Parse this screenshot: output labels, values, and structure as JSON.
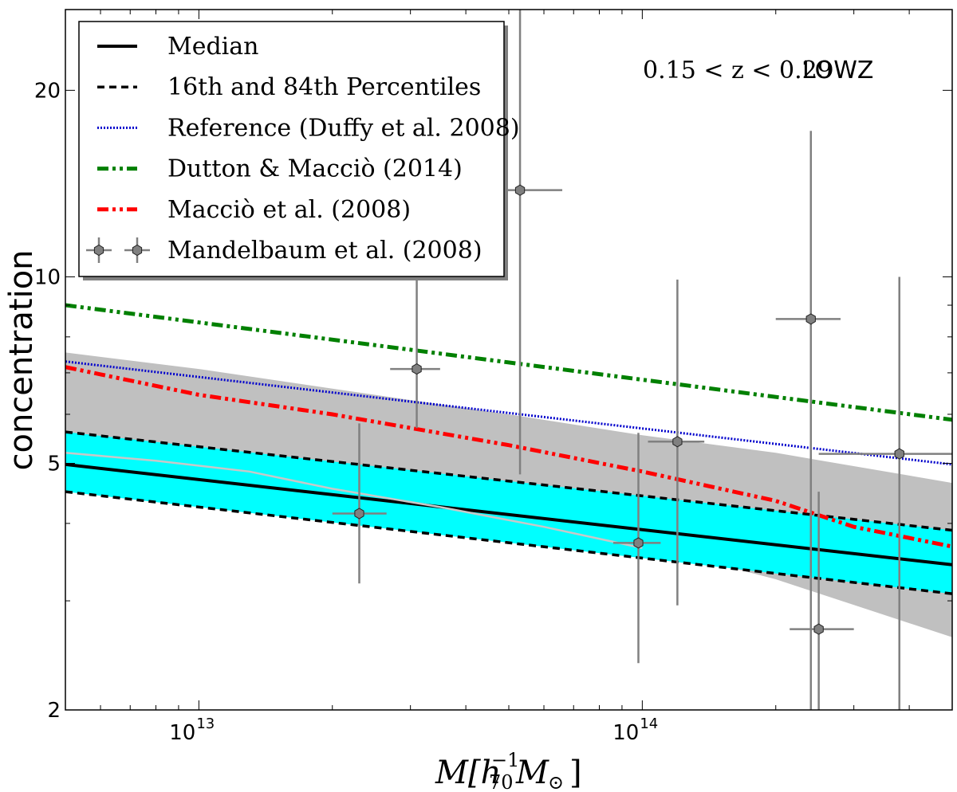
{
  "chart_data": {
    "type": "line",
    "xscale": "log",
    "yscale": "log",
    "xlim": [
      5000000000000.0,
      500000000000000.0
    ],
    "ylim": [
      2,
      27
    ],
    "xlabel": "M[h70^-1 M⊙]",
    "ylabel": "concentration",
    "grid": false,
    "legend_position": "top-left",
    "x_ticks": [
      {
        "value": 10000000000000.0,
        "base": "10",
        "exp": "13"
      },
      {
        "value": 100000000000000.0,
        "base": "10",
        "exp": "14"
      }
    ],
    "y_ticks": [
      {
        "value": 2,
        "label": "2"
      },
      {
        "value": 5,
        "label": "5"
      },
      {
        "value": 10,
        "label": "10"
      },
      {
        "value": 20,
        "label": "20"
      }
    ],
    "annotation": {
      "math": "0.15 < z < 0.29",
      "text": "LOWZ"
    },
    "series": [
      {
        "name": "Median",
        "style": "solid",
        "color": "#000000",
        "x": [
          5000000000000.0,
          500000000000000.0
        ],
        "y": [
          4.98,
          3.43
        ]
      },
      {
        "name": "16th and 84th Percentiles",
        "style": "dashed",
        "color": "#000000",
        "x": [
          5000000000000.0,
          500000000000000.0
        ],
        "y": [
          5.62,
          3.9
        ]
      },
      {
        "name": "16th Percentile",
        "style": "dashed",
        "color": "#000000",
        "legend": false,
        "x": [
          5000000000000.0,
          500000000000000.0
        ],
        "y": [
          4.5,
          3.08
        ]
      },
      {
        "name": "Reference (Duffy et al. 2008)",
        "style": "dotted",
        "color": "#0000cc",
        "x": [
          5000000000000.0,
          500000000000000.0
        ],
        "y": [
          7.3,
          4.98
        ]
      },
      {
        "name": "Dutton & Macciò (2014)",
        "style": "dashdotdot",
        "color": "#008000",
        "x": [
          5000000000000.0,
          500000000000000.0
        ],
        "y": [
          9.0,
          5.88
        ]
      },
      {
        "name": "Macciò et al. (2008)",
        "style": "dashdotdot",
        "color": "#ff0000",
        "x": [
          5000000000000.0,
          10000000000000.0,
          20000000000000.0,
          50000000000000.0,
          100000000000000.0,
          200000000000000.0,
          300000000000000.0,
          500000000000000.0
        ],
        "y": [
          7.15,
          6.45,
          6.0,
          5.35,
          4.85,
          4.35,
          3.95,
          3.67
        ]
      },
      {
        "name": "Light grey median",
        "style": "solid",
        "color": "#c8c8c8",
        "legend": false,
        "x": [
          5000000000000.0,
          8000000000000.0,
          13000000000000.0,
          20000000000000.0,
          35000000000000.0,
          60000000000000.0,
          100000000000000.0
        ],
        "y": [
          5.2,
          5.05,
          4.85,
          4.55,
          4.25,
          3.95,
          3.65
        ]
      }
    ],
    "bands": [
      {
        "name": "grey-scatter",
        "color": "#c0c0c0",
        "x": [
          5000000000000.0,
          10000000000000.0,
          20000000000000.0,
          50000000000000.0,
          100000000000000.0,
          200000000000000.0,
          500000000000000.0
        ],
        "upper": [
          7.55,
          7.1,
          6.6,
          6.0,
          5.55,
          5.2,
          4.65
        ],
        "lower": [
          5.2,
          5.0,
          4.6,
          4.1,
          3.7,
          3.25,
          2.62
        ]
      },
      {
        "name": "cyan-percentile-band",
        "color": "#00ffff",
        "x": [
          5000000000000.0,
          500000000000000.0
        ],
        "upper": [
          5.62,
          3.9
        ],
        "lower": [
          4.5,
          3.08
        ]
      }
    ],
    "points": {
      "name": "Mandelbaum et al. (2008)",
      "color": "#808080",
      "data": [
        {
          "x": 23000000000000.0,
          "y": 4.15,
          "xlo": 20000000000000.0,
          "xhi": 26500000000000.0,
          "ylo": 3.2,
          "yhi": 5.8
        },
        {
          "x": 31000000000000.0,
          "y": 7.1,
          "xlo": 27000000000000.0,
          "xhi": 35000000000000.0,
          "ylo": 5.7,
          "yhi": 10.0
        },
        {
          "x": 53000000000000.0,
          "y": 13.8,
          "xlo": 42000000000000.0,
          "xhi": 66000000000000.0,
          "ylo": 4.8,
          "yhi": 30.0
        },
        {
          "x": 98000000000000.0,
          "y": 3.72,
          "xlo": 86000000000000.0,
          "xhi": 110000000000000.0,
          "ylo": 2.38,
          "yhi": 5.6
        },
        {
          "x": 120000000000000.0,
          "y": 5.42,
          "xlo": 103000000000000.0,
          "xhi": 138000000000000.0,
          "ylo": 2.95,
          "yhi": 9.9
        },
        {
          "x": 240000000000000.0,
          "y": 8.55,
          "xlo": 200000000000000.0,
          "xhi": 280000000000000.0,
          "ylo": 2.0,
          "yhi": 17.2
        },
        {
          "x": 250000000000000.0,
          "y": 2.7,
          "xlo": 215000000000000.0,
          "xhi": 300000000000000.0,
          "ylo": 2.0,
          "yhi": 4.5
        },
        {
          "x": 380000000000000.0,
          "y": 5.18,
          "xlo": 250000000000000.0,
          "xhi": 500000000000000.0,
          "ylo": 2.0,
          "yhi": 10.0
        }
      ]
    },
    "legend": [
      {
        "label": "Median",
        "style": "solid",
        "color": "#000000"
      },
      {
        "label": "16th and 84th Percentiles",
        "style": "dashed",
        "color": "#000000"
      },
      {
        "label": "Reference (Duffy et al. 2008)",
        "style": "dotted",
        "color": "#0000cc"
      },
      {
        "label": "Dutton & Macciò (2014)",
        "style": "dashdotdot",
        "color": "#008000"
      },
      {
        "label": "Macciò et al. (2008)",
        "style": "dashdotdot",
        "color": "#ff0000"
      },
      {
        "label": "Mandelbaum et al. (2008)",
        "style": "errorbar",
        "color": "#808080"
      }
    ]
  }
}
